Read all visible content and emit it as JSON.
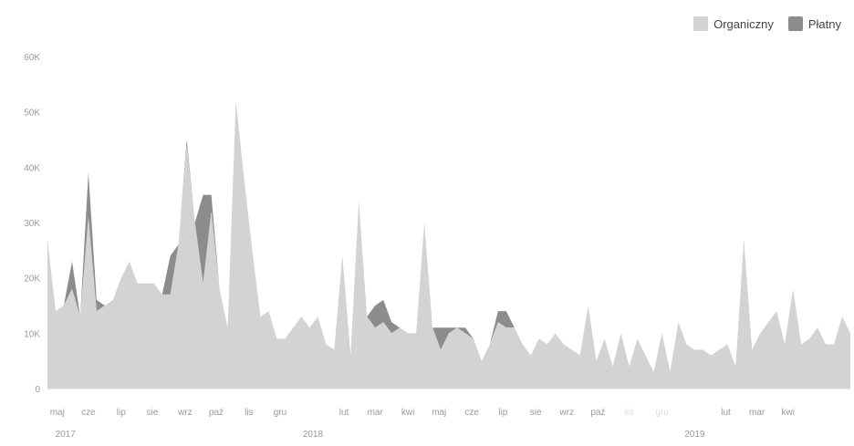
{
  "chart_data": {
    "type": "area",
    "stacked": true,
    "ylim": [
      0,
      60000
    ],
    "y_ticks": [
      0,
      10000,
      20000,
      30000,
      40000,
      50000,
      60000
    ],
    "y_tick_labels": [
      "0",
      "10K",
      "20K",
      "30K",
      "40K",
      "50K",
      "60K"
    ],
    "legend_position": "top-right",
    "grid": false,
    "series": [
      {
        "name": "Organiczny",
        "color": "#d3d3d3",
        "values": [
          27000,
          14000,
          15000,
          18000,
          13000,
          31000,
          14000,
          15000,
          16000,
          20000,
          23000,
          19000,
          19000,
          19000,
          17000,
          17000,
          26000,
          44000,
          30000,
          19000,
          32000,
          18000,
          11000,
          52000,
          38000,
          25000,
          13000,
          14000,
          9000,
          9000,
          11000,
          13000,
          11000,
          13000,
          8000,
          7000,
          24000,
          6000,
          34000,
          13000,
          11000,
          12000,
          10000,
          11000,
          10000,
          10000,
          30000,
          11000,
          7000,
          10000,
          11000,
          10000,
          9000,
          5000,
          8000,
          12000,
          11000,
          11000,
          8000,
          6000,
          9000,
          8000,
          10000,
          8000,
          7000,
          6000,
          15000,
          5000,
          9000,
          4000,
          10000,
          4000,
          9000,
          6000,
          3000,
          10000,
          3000,
          12000,
          8000,
          7000,
          7000,
          6000,
          7000,
          8000,
          4000,
          27000,
          7000,
          10000,
          12000,
          14000,
          8000,
          18000,
          8000,
          9000,
          11000,
          8000,
          8000,
          13000,
          10000
        ]
      },
      {
        "name": "Płatny",
        "color": "#8c8c8c",
        "values": [
          0,
          0,
          0,
          5000,
          0,
          8000,
          2000,
          0,
          0,
          0,
          0,
          0,
          0,
          0,
          0,
          7000,
          0,
          1000,
          0,
          16000,
          3000,
          0,
          0,
          0,
          0,
          0,
          0,
          0,
          0,
          0,
          0,
          0,
          0,
          0,
          0,
          0,
          0,
          0,
          0,
          0,
          4000,
          4000,
          2000,
          0,
          0,
          0,
          0,
          0,
          4000,
          1000,
          0,
          1000,
          0,
          0,
          0,
          2000,
          3000,
          0,
          0,
          0,
          0,
          0,
          0,
          0,
          0,
          0,
          0,
          0,
          0,
          0,
          0,
          0,
          0,
          0,
          0,
          0,
          0,
          0,
          0,
          0,
          0,
          0,
          0,
          0,
          0,
          0,
          0,
          0,
          0,
          0,
          0,
          0,
          0,
          0,
          0,
          0,
          0,
          0,
          0
        ]
      }
    ],
    "x_month_labels": [
      {
        "label": "maj",
        "index": 1.2
      },
      {
        "label": "cze",
        "index": 5.0
      },
      {
        "label": "lip",
        "index": 9.0
      },
      {
        "label": "sie",
        "index": 12.8
      },
      {
        "label": "wrz",
        "index": 16.8
      },
      {
        "label": "paź",
        "index": 20.6
      },
      {
        "label": "lis",
        "index": 24.6
      },
      {
        "label": "gru",
        "index": 28.4
      },
      {
        "label": "lut",
        "index": 36.2
      },
      {
        "label": "mar",
        "index": 40.0
      },
      {
        "label": "kwi",
        "index": 44.0
      },
      {
        "label": "maj",
        "index": 47.8
      },
      {
        "label": "cze",
        "index": 51.8
      },
      {
        "label": "lip",
        "index": 55.6
      },
      {
        "label": "sie",
        "index": 59.6
      },
      {
        "label": "wrz",
        "index": 63.4
      },
      {
        "label": "paź",
        "index": 67.2
      },
      {
        "label": "lis",
        "index": 71.0
      },
      {
        "label": "gru",
        "index": 75.0
      },
      {
        "label": "lut",
        "index": 82.8
      },
      {
        "label": "mar",
        "index": 86.6
      },
      {
        "label": "kwi",
        "index": 90.4
      }
    ],
    "faded_label_indices": [
      17,
      18
    ],
    "x_year_labels": [
      {
        "label": "2017",
        "index": 2.2
      },
      {
        "label": "2018",
        "index": 32.4
      },
      {
        "label": "2019",
        "index": 79.0
      }
    ]
  }
}
